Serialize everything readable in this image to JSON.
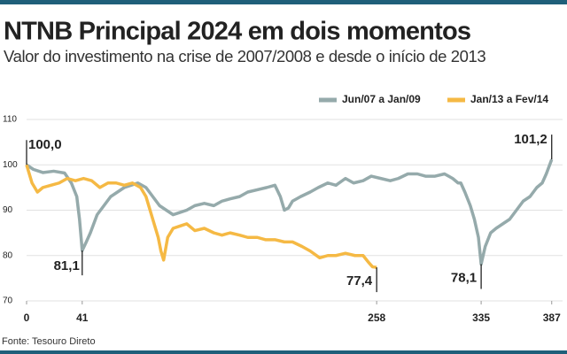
{
  "chart_data": {
    "type": "line",
    "title": "NTNB Principal 2024 em dois momentos",
    "subtitle": "Valor do investimento na crise de 2007/2008 e desde o início de 2013",
    "source": "Fonte: Tesouro Direto",
    "xlim": [
      0,
      395
    ],
    "xticks": [
      0,
      41,
      258,
      335,
      387
    ],
    "ylim": [
      70,
      110
    ],
    "yticks": [
      70,
      80,
      90,
      100,
      110
    ],
    "grid": true,
    "legend": "top-right",
    "series": [
      {
        "name": "Jun/07 a Jan/09",
        "color": "#95aaab",
        "x": [
          0,
          5,
          12,
          20,
          28,
          33,
          37,
          39,
          41,
          44,
          47,
          52,
          57,
          62,
          67,
          72,
          77,
          82,
          88,
          93,
          98,
          103,
          108,
          113,
          118,
          124,
          131,
          138,
          144,
          150,
          157,
          163,
          170,
          177,
          183,
          187,
          190,
          193,
          196,
          202,
          209,
          215,
          222,
          228,
          235,
          241,
          248,
          254,
          261,
          268,
          274,
          281,
          288,
          294,
          301,
          308,
          314,
          318,
          320,
          323,
          327,
          330,
          333,
          335,
          338,
          342,
          346,
          351,
          356,
          361,
          366,
          371,
          376,
          380,
          383,
          387
        ],
        "values": [
          100,
          99,
          98.3,
          98.6,
          98.2,
          96,
          93,
          88,
          81.1,
          83,
          85,
          89,
          91,
          93,
          94,
          95,
          95.5,
          96,
          95,
          93,
          91,
          90,
          89,
          89.5,
          90,
          91,
          91.5,
          91,
          92,
          92.5,
          93,
          94,
          94.5,
          95,
          95.5,
          93,
          90,
          90.5,
          92,
          93,
          94,
          95,
          96,
          95.5,
          97,
          96,
          96.5,
          97.5,
          97,
          96.5,
          97,
          98,
          98,
          97.5,
          97.5,
          98,
          97,
          96,
          96,
          94,
          91,
          88,
          84,
          78.1,
          82,
          85,
          86,
          87,
          88,
          90,
          92,
          93,
          95,
          96,
          98,
          101.2
        ]
      },
      {
        "name": "Jan/13 a Fev/14",
        "color": "#f5b944",
        "x": [
          0,
          4,
          8,
          12,
          18,
          24,
          30,
          36,
          42,
          48,
          54,
          60,
          66,
          72,
          78,
          84,
          88,
          91,
          94,
          97,
          99,
          101,
          104,
          108,
          113,
          118,
          124,
          131,
          138,
          144,
          150,
          157,
          163,
          170,
          176,
          183,
          190,
          196,
          203,
          209,
          216,
          222,
          228,
          235,
          242,
          248,
          252,
          255,
          258
        ],
        "values": [
          100,
          96,
          94,
          95,
          95.5,
          96,
          97,
          96.5,
          97,
          96.5,
          95,
          96,
          96,
          95.5,
          96,
          95,
          93,
          90,
          87,
          84,
          81,
          79,
          84,
          86,
          86.5,
          87,
          85.5,
          86,
          85,
          84.5,
          85,
          84.5,
          84,
          84,
          83.5,
          83.5,
          83,
          83,
          82,
          81,
          79.5,
          80,
          80,
          80.5,
          80,
          80,
          78.5,
          77.5,
          77.4
        ]
      }
    ],
    "annotations": [
      {
        "x": 0,
        "value": 100,
        "label": "100,0"
      },
      {
        "x": 41,
        "value": 81.1,
        "label": "81,1"
      },
      {
        "x": 258,
        "value": 77.4,
        "label": "77,4"
      },
      {
        "x": 335,
        "value": 78.1,
        "label": "78,1"
      },
      {
        "x": 387,
        "value": 101.2,
        "label": "101,2"
      }
    ]
  }
}
